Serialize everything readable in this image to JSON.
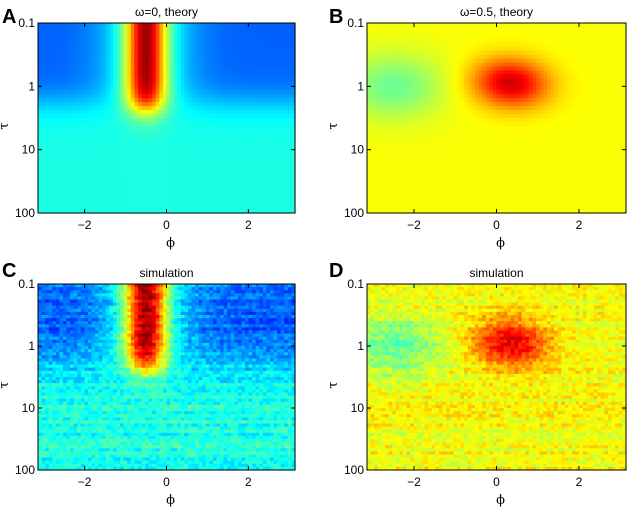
{
  "chart_data": [
    {
      "panel": "A",
      "type": "heatmap",
      "title": "ω=0, theory",
      "xlabel": "ϕ",
      "ylabel": "τ",
      "xlim": [
        -3.14,
        3.14
      ],
      "ylim": [
        0.1,
        100
      ],
      "y_scale": "log",
      "x_ticks": [
        -2,
        0,
        2
      ],
      "y_ticks": [
        0.1,
        1,
        10,
        100
      ],
      "x_tick_labels": [
        "−2",
        "0",
        "2"
      ],
      "y_tick_labels": [
        "0.1",
        "1",
        "10",
        "100"
      ],
      "colormap": "jet",
      "features": [
        {
          "kind": "peak",
          "x": -0.5,
          "y_range": [
            0.1,
            2.5
          ],
          "width": 0.7,
          "level": 0.97
        },
        {
          "kind": "trough",
          "x_range": [
            -3.14,
            -1.3
          ],
          "y_range": [
            0.1,
            1.5
          ],
          "level": 0.22
        },
        {
          "kind": "trough",
          "x_range": [
            1.3,
            3.14
          ],
          "y_range": [
            0.1,
            1.5
          ],
          "level": 0.22
        },
        {
          "kind": "baseline",
          "y_range": [
            10,
            100
          ],
          "level": 0.4
        }
      ]
    },
    {
      "panel": "B",
      "type": "heatmap",
      "title": "ω=0.5, theory",
      "xlabel": "ϕ",
      "ylabel": "τ",
      "xlim": [
        -3.14,
        3.14
      ],
      "ylim": [
        0.1,
        100
      ],
      "y_scale": "log",
      "x_ticks": [
        -2,
        0,
        2
      ],
      "y_ticks": [
        0.1,
        1,
        10,
        100
      ],
      "x_tick_labels": [
        "−2",
        "0",
        "2"
      ],
      "y_tick_labels": [
        "0.1",
        "1",
        "10",
        "100"
      ],
      "colormap": "jet",
      "features": [
        {
          "kind": "peak",
          "x": 0.35,
          "y": 0.8,
          "level": 0.92
        },
        {
          "kind": "trough",
          "x": -2.5,
          "y": 1.0,
          "level": 0.45
        },
        {
          "kind": "baseline",
          "y_range": [
            10,
            100
          ],
          "level": 0.6
        }
      ]
    },
    {
      "panel": "C",
      "type": "heatmap",
      "title": "simulation",
      "xlabel": "ϕ",
      "ylabel": "τ",
      "xlim": [
        -3.14,
        3.14
      ],
      "ylim": [
        0.1,
        100
      ],
      "y_scale": "log",
      "x_ticks": [
        -2,
        0,
        2
      ],
      "y_ticks": [
        0.1,
        1,
        10,
        100
      ],
      "x_tick_labels": [
        "−2",
        "0",
        "2"
      ],
      "y_tick_labels": [
        "0.1",
        "1",
        "10",
        "100"
      ],
      "colormap": "jet",
      "features": [
        {
          "kind": "peak",
          "x": -0.5,
          "y_range": [
            0.1,
            2.5
          ],
          "width": 0.7,
          "level": 0.97
        },
        {
          "kind": "trough",
          "x_range": [
            -3.14,
            -1.3
          ],
          "y_range": [
            0.1,
            1.5
          ],
          "level": 0.22
        },
        {
          "kind": "trough",
          "x_range": [
            1.3,
            3.14
          ],
          "y_range": [
            0.1,
            1.5
          ],
          "level": 0.22
        },
        {
          "kind": "baseline",
          "y_range": [
            10,
            100
          ],
          "level": 0.4
        }
      ]
    },
    {
      "panel": "D",
      "type": "heatmap",
      "title": "simulation",
      "xlabel": "ϕ",
      "ylabel": "τ",
      "xlim": [
        -3.14,
        3.14
      ],
      "ylim": [
        0.1,
        100
      ],
      "y_scale": "log",
      "x_ticks": [
        -2,
        0,
        2
      ],
      "y_ticks": [
        0.1,
        1,
        10,
        100
      ],
      "x_tick_labels": [
        "−2",
        "0",
        "2"
      ],
      "y_tick_labels": [
        "0.1",
        "1",
        "10",
        "100"
      ],
      "colormap": "jet",
      "features": [
        {
          "kind": "peak",
          "x": 0.35,
          "y": 0.8,
          "level": 0.92
        },
        {
          "kind": "trough",
          "x": -2.5,
          "y": 1.0,
          "level": 0.45
        },
        {
          "kind": "baseline",
          "y_range": [
            10,
            100
          ],
          "level": 0.6
        }
      ]
    }
  ]
}
